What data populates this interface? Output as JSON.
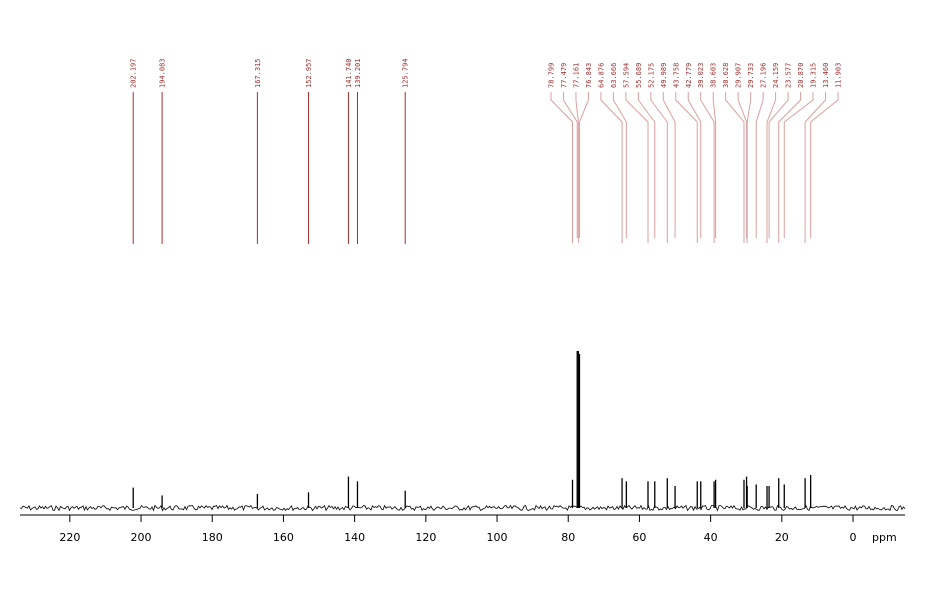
{
  "chart_data": {
    "type": "spectrum",
    "x_label": "ppm",
    "xlim": [
      234,
      -14.6
    ],
    "xticks": [
      220,
      200,
      180,
      160,
      140,
      120,
      100,
      80,
      60,
      40,
      20,
      0
    ],
    "peaks": [
      202.197,
      194.083,
      167.315,
      152.957,
      141.74,
      139.201,
      125.794,
      78.799,
      77.479,
      77.161,
      76.843,
      64.876,
      63.666,
      57.594,
      55.689,
      52.175,
      49.989,
      43.758,
      42.779,
      39.023,
      38.603,
      30.628,
      29.907,
      29.733,
      27.196,
      24.159,
      23.577,
      20.87,
      19.315,
      13.46,
      11.903
    ],
    "value_labels": [
      "202.197",
      "194.083",
      "167.315",
      "152.957",
      "141.740",
      "139.201",
      "125.794",
      "78.799",
      "77.479",
      "77.161",
      "76.843",
      "64.876",
      "63.666",
      "57.594",
      "55.689",
      "52.175",
      "49.989",
      "43.758",
      "42.779",
      "39.023",
      "38.603",
      "30.628",
      "29.907",
      "29.733",
      "27.196",
      "24.159",
      "23.577",
      "20.870",
      "19.315",
      "13.460",
      "11.903"
    ],
    "values": [
      13,
      8,
      9,
      10,
      20,
      17,
      11,
      18,
      100,
      100,
      98,
      19,
      17,
      17,
      17,
      19,
      14,
      17,
      17,
      17,
      18,
      18,
      20,
      14,
      15,
      14,
      14,
      19,
      15,
      19,
      21
    ],
    "color": "#000000",
    "label_color": "#9c2a2a"
  }
}
